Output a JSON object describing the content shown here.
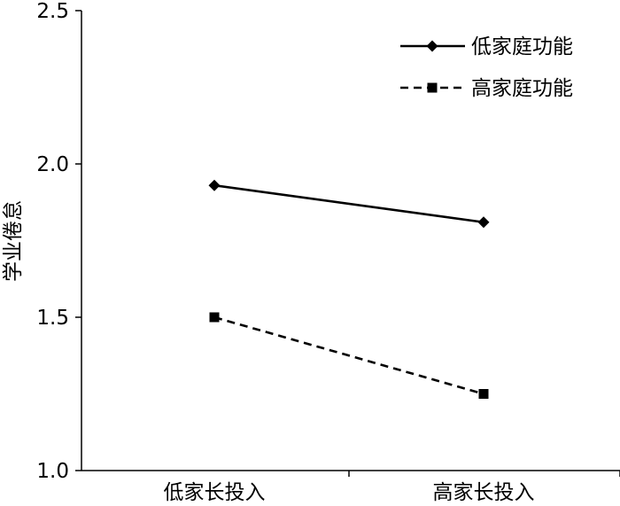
{
  "chart_data": {
    "type": "line",
    "title": "",
    "xlabel": "",
    "ylabel": "学业倦怠",
    "categories": [
      "低家长投入",
      "高家长投入"
    ],
    "ylim": [
      1.0,
      2.5
    ],
    "yticks": [
      "1.0",
      "1.5",
      "2.0",
      "2.5"
    ],
    "ytick_values": [
      1.0,
      1.5,
      2.0,
      2.5
    ],
    "grid": false,
    "legend_position": "top-right",
    "series": [
      {
        "name": "低家庭功能",
        "values": [
          1.93,
          1.81
        ],
        "line_style": "solid",
        "marker": "diamond",
        "color": "#000000"
      },
      {
        "name": "高家庭功能",
        "values": [
          1.5,
          1.25
        ],
        "line_style": "dashed",
        "marker": "square",
        "color": "#000000"
      }
    ]
  }
}
